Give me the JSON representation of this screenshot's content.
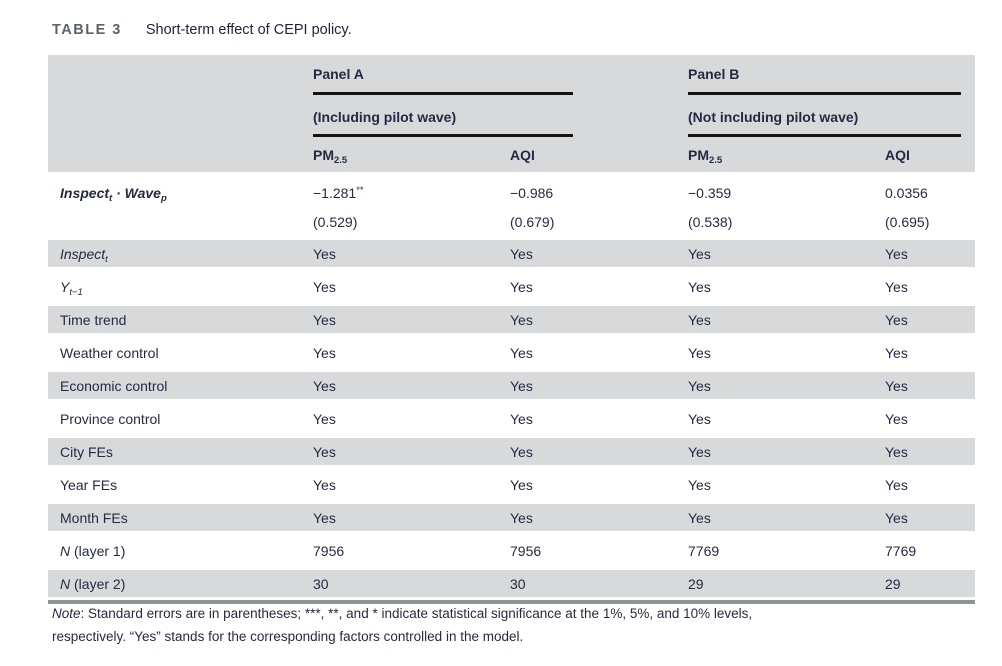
{
  "title": {
    "label": "TABLE 3",
    "caption": "Short-term effect of CEPI policy."
  },
  "table": {
    "panels": [
      {
        "name": "Panel A",
        "subtitle": "(Including pilot wave)"
      },
      {
        "name": "Panel B",
        "subtitle": "(Not including pilot wave)"
      }
    ],
    "col_headers": [
      {
        "base": "PM",
        "sub": "2.5"
      },
      {
        "base": "AQI",
        "sub": ""
      },
      {
        "base": "PM",
        "sub": "2.5"
      },
      {
        "base": "AQI",
        "sub": ""
      }
    ],
    "coef_row": {
      "label": {
        "word1": "Inspect",
        "sub1": "t",
        "dot": " · ",
        "word2": "Wave",
        "sub2": "p"
      },
      "estimates": [
        {
          "value": "−1.281",
          "stars": "**"
        },
        {
          "value": "−0.986",
          "stars": ""
        },
        {
          "value": "−0.359",
          "stars": ""
        },
        {
          "value": "0.0356",
          "stars": ""
        }
      ],
      "std_errors": [
        "(0.529)",
        "(0.679)",
        "(0.538)",
        "(0.695)"
      ]
    },
    "rows": [
      {
        "em": "Inspect",
        "sub": "t",
        "plain": "",
        "values": [
          "Yes",
          "Yes",
          "Yes",
          "Yes"
        ]
      },
      {
        "em": "Y",
        "sub": "t−1",
        "plain": "",
        "values": [
          "Yes",
          "Yes",
          "Yes",
          "Yes"
        ]
      },
      {
        "em": "",
        "sub": "",
        "plain": "Time trend",
        "values": [
          "Yes",
          "Yes",
          "Yes",
          "Yes"
        ]
      },
      {
        "em": "",
        "sub": "",
        "plain": "Weather control",
        "values": [
          "Yes",
          "Yes",
          "Yes",
          "Yes"
        ]
      },
      {
        "em": "",
        "sub": "",
        "plain": "Economic control",
        "values": [
          "Yes",
          "Yes",
          "Yes",
          "Yes"
        ]
      },
      {
        "em": "",
        "sub": "",
        "plain": "Province control",
        "values": [
          "Yes",
          "Yes",
          "Yes",
          "Yes"
        ]
      },
      {
        "em": "",
        "sub": "",
        "plain": "City FEs",
        "values": [
          "Yes",
          "Yes",
          "Yes",
          "Yes"
        ]
      },
      {
        "em": "",
        "sub": "",
        "plain": "Year FEs",
        "values": [
          "Yes",
          "Yes",
          "Yes",
          "Yes"
        ]
      },
      {
        "em": "",
        "sub": "",
        "plain": "Month FEs",
        "values": [
          "Yes",
          "Yes",
          "Yes",
          "Yes"
        ]
      },
      {
        "em": "N",
        "sub": "",
        "plain": " (layer 1)",
        "values": [
          "7956",
          "7956",
          "7769",
          "7769"
        ]
      },
      {
        "em": "N",
        "sub": "",
        "plain": " (layer 2)",
        "values": [
          "30",
          "30",
          "29",
          "29"
        ]
      }
    ]
  },
  "note": {
    "prefix": "Note",
    "line1": ": Standard errors are in parentheses; ***, **, and * indicate statistical significance at the 1%, 5%, and 10% levels,",
    "line2": "respectively. “Yes” stands for the corresponding factors controlled in the model."
  }
}
